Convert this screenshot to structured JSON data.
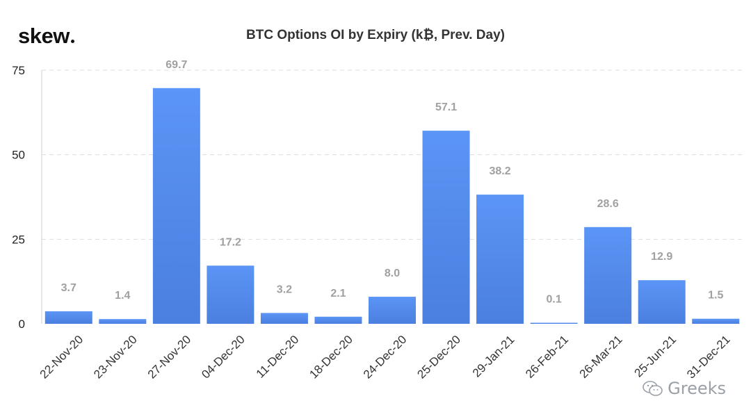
{
  "brand": {
    "logo_text": "skew"
  },
  "chart_data": {
    "type": "bar",
    "title": "BTC Options OI by Expiry (k₿, Prev. Day)",
    "categories": [
      "22-Nov-20",
      "23-Nov-20",
      "27-Nov-20",
      "04-Dec-20",
      "11-Dec-20",
      "18-Dec-20",
      "24-Dec-20",
      "25-Dec-20",
      "29-Jan-21",
      "26-Feb-21",
      "26-Mar-21",
      "25-Jun-21",
      "31-Dec-21"
    ],
    "values": [
      3.7,
      1.4,
      69.7,
      17.2,
      3.2,
      2.1,
      8.0,
      57.1,
      38.2,
      0.1,
      28.6,
      12.9,
      1.5
    ],
    "data_labels": [
      "3.7",
      "1.4",
      "69.7",
      "17.2",
      "3.2",
      "2.1",
      "8.0",
      "57.1",
      "38.2",
      "0.1",
      "28.6",
      "12.9",
      "1.5"
    ],
    "yticks": [
      0,
      25,
      50,
      75
    ],
    "ylim": [
      0,
      75
    ],
    "xlabel": "",
    "ylabel": "",
    "grid": true,
    "legend": "none",
    "colors": {
      "bar_top": "#5b95f5",
      "bar_bottom": "#4b7fe0",
      "label": "#a0a0a0",
      "grid": "#dcdcdc"
    }
  },
  "watermark": {
    "icon": "wechat-icon",
    "text": "Greeks"
  }
}
